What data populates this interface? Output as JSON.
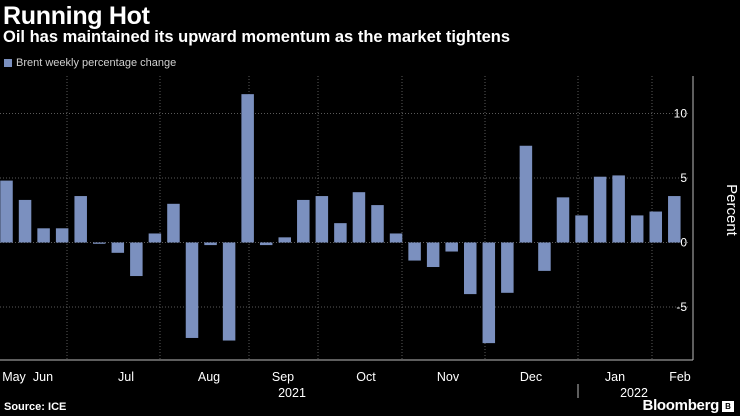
{
  "header": {
    "title": "Running Hot",
    "subtitle": "Oil has maintained its upward momentum as the market tightens"
  },
  "footer": {
    "source": "Source: ICE",
    "brand": "Bloomberg"
  },
  "colors": {
    "bar": "#7b90bf",
    "background": "#000000",
    "grid": "#5a5a5a",
    "text": "#ffffff"
  },
  "chart_data": {
    "type": "bar",
    "legend": {
      "position": "top-left",
      "entries": [
        "Brent weekly percentage change"
      ]
    },
    "series": [
      {
        "name": "Brent weekly percentage change",
        "values": [
          4.8,
          3.3,
          1.1,
          1.1,
          3.6,
          -0.1,
          -0.8,
          -2.6,
          0.7,
          3.0,
          -7.4,
          -0.2,
          -7.6,
          11.5,
          -0.2,
          0.4,
          3.3,
          3.6,
          1.5,
          3.9,
          2.9,
          0.7,
          -1.4,
          -1.9,
          -0.7,
          -4.0,
          -7.8,
          -3.9,
          7.5,
          -2.2,
          3.5,
          2.1,
          5.1,
          5.2,
          2.1,
          2.4,
          3.6
        ]
      }
    ],
    "ylabel": "Percent",
    "ylim": [
      -9,
      13
    ],
    "yticks": [
      -5,
      0,
      5,
      10
    ],
    "ytick_labels": [
      "-5",
      "0",
      "5",
      "10"
    ],
    "grid": "y-major-dashed",
    "x_month_labels": [
      "May",
      "Jun",
      "Jul",
      "Aug",
      "Sep",
      "Oct",
      "Nov",
      "Dec",
      "Jan",
      "Feb"
    ],
    "x_year_labels": [
      "2021",
      "2022"
    ]
  }
}
